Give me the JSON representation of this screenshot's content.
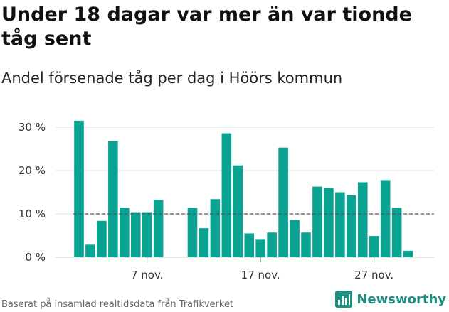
{
  "header": {
    "title": "Under 18 dagar var mer än var tionde tåg sent",
    "subtitle": "Andel försenade tåg per dag i Höörs kommun"
  },
  "footer": {
    "source": "Baserat på insamlad realtidsdata från Trafikverket",
    "brand": "Newsworthy"
  },
  "colors": {
    "bar": "#0aa393",
    "reference_line": "#555555",
    "grid": "#dddddd",
    "brand": "#1f8f82"
  },
  "icons": {
    "brand_logo": "newsworthy-logo-icon"
  },
  "chart_data": {
    "type": "bar",
    "title": "Andel försenade tåg per dag i Höörs kommun",
    "xlabel": "",
    "ylabel": "",
    "ylim": [
      0,
      32
    ],
    "y_ticks": [
      0,
      10,
      20,
      30
    ],
    "y_tick_labels": [
      "0 %",
      "10 %",
      "20 %",
      "30 %"
    ],
    "x_tick_labels": [
      "7 nov.",
      "17 nov.",
      "27 nov."
    ],
    "x_tick_days": [
      7,
      17,
      27
    ],
    "days": [
      1,
      2,
      3,
      4,
      5,
      6,
      7,
      8,
      9,
      10,
      11,
      12,
      13,
      14,
      15,
      16,
      17,
      18,
      19,
      20,
      21,
      22,
      23,
      24,
      25,
      26,
      27,
      28,
      29,
      30
    ],
    "values": [
      31.5,
      2.9,
      8.4,
      26.8,
      11.4,
      10.4,
      10.4,
      13.2,
      null,
      null,
      11.4,
      6.7,
      13.4,
      28.6,
      21.2,
      5.5,
      4.2,
      5.7,
      25.3,
      8.6,
      5.7,
      16.3,
      16.0,
      15.0,
      14.3,
      17.3,
      4.9,
      17.8,
      11.4,
      1.5
    ],
    "reference_line": 10,
    "grid": true
  }
}
